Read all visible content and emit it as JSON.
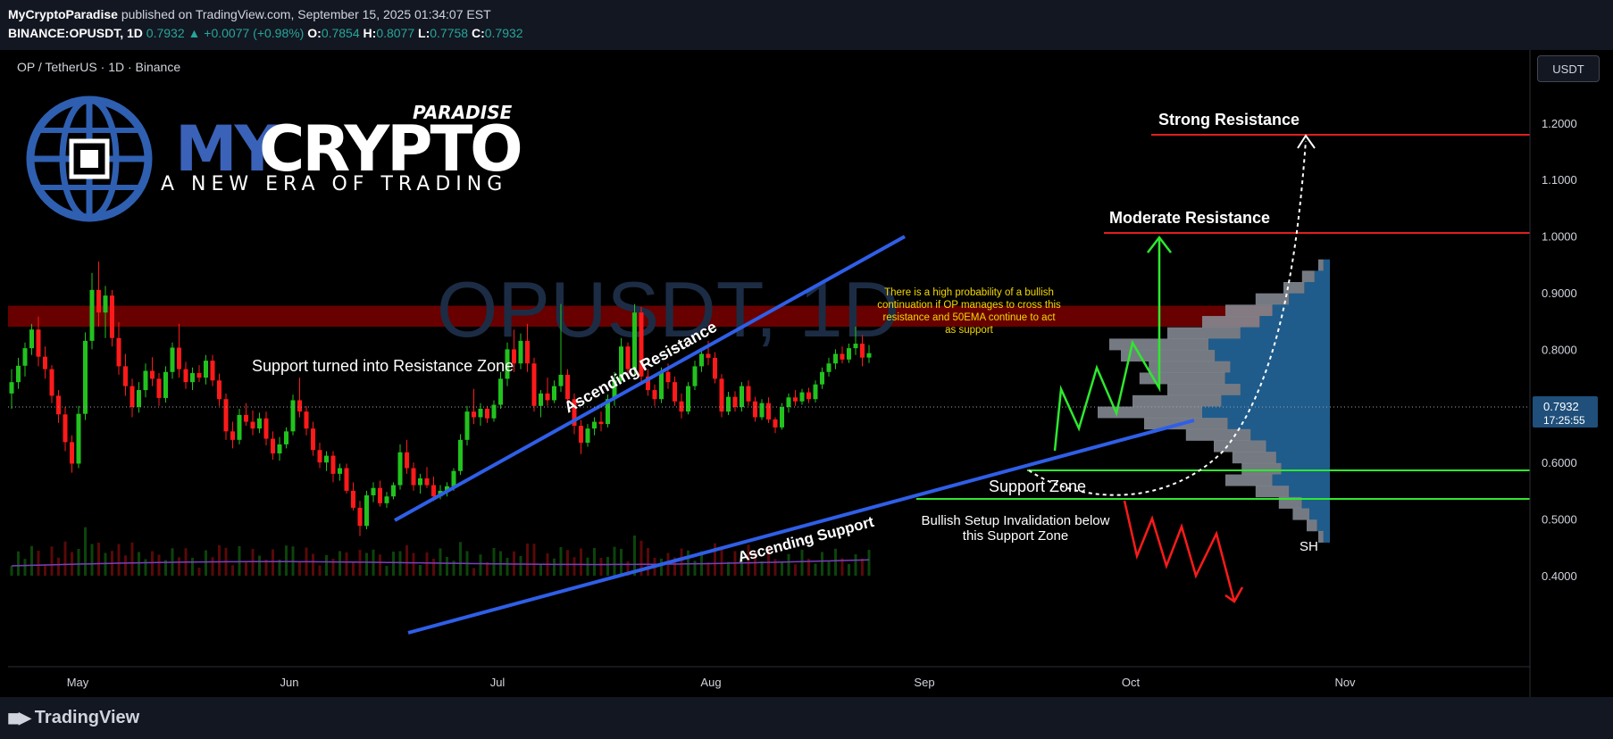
{
  "header": {
    "author": "MyCryptoParadise",
    "published_text": "published on TradingView.com, September 15, 2025 01:34:07 EST",
    "symbol": "BINANCE:OPUSDT, 1D",
    "last": "0.7932",
    "change": "+0.0077 (+0.98%)",
    "o_label": "O:",
    "o_value": "0.7854",
    "h_label": "H:",
    "h_value": "0.8077",
    "l_label": "L:",
    "l_value": "0.7758",
    "c_label": "C:",
    "c_value": "0.7932"
  },
  "symbol_title": "OP / TetherUS · 1D · Binance",
  "currency_button": "USDT",
  "watermark": "OPUSDT, 1D",
  "brand": {
    "paradise": "PARADISE",
    "my": "MY",
    "crypto": "CRYPTO",
    "tagline": "A NEW ERA OF TRADING"
  },
  "footer": {
    "logo_text": "TradingView"
  },
  "colors": {
    "up": "#22c21e",
    "down": "#ff1a1a",
    "trendline": "#2f5fe8",
    "resistance": "#e01e1e",
    "support": "#2ee82e",
    "zone": "#8b0000",
    "profile_blue": "#1f5c8c",
    "profile_grey": "#8a8f99",
    "price_badge": "#1f4f7a"
  },
  "chart_data": {
    "type": "candlestick",
    "title": "OP / TetherUS · 1D · Binance",
    "symbol": "BINANCE:OPUSDT",
    "interval": "1D",
    "y_axis": {
      "ticks": [
        "1.2000",
        "1.1000",
        "1.0000",
        "0.9000",
        "0.8000",
        "0.7000",
        "0.6000",
        "0.5000",
        "0.4000"
      ],
      "range": [
        0.4,
        1.3
      ]
    },
    "x_axis": {
      "ticks": [
        "May",
        "Jun",
        "Jul",
        "Aug",
        "Sep",
        "Oct",
        "Nov"
      ]
    },
    "current_price": {
      "value": 0.7932,
      "label": "0.7932",
      "countdown": "17:25:55"
    },
    "levels": [
      {
        "name": "Strong Resistance",
        "price": 1.208
      },
      {
        "name": "Moderate Resistance",
        "price": 1.058
      },
      {
        "name": "Support Zone",
        "price": 0.696
      },
      {
        "name": "Support Zone lower",
        "price": 0.651
      }
    ],
    "zones": [
      {
        "label": "Support turned into Resistance Zone",
        "from": 0.84,
        "to": 0.877
      }
    ],
    "annotations": {
      "ascending_resistance": "Ascending Resistance",
      "ascending_support": "Ascending Support",
      "support_zone": "Support Zone",
      "invalidation": [
        "Bullish Setup Invalidation below",
        "this Support Zone"
      ],
      "note": [
        "There is a high probability of a bullish",
        "continuation if OP manages to cross this",
        "resistance and 50EMA continue to act",
        "as support"
      ],
      "sh": "SH"
    },
    "trendlines": [
      {
        "name": "Ascending Resistance",
        "from": [
          0.0,
          0.618
        ],
        "to": [
          1.0,
          1.053
        ]
      },
      {
        "name": "Ascending Support",
        "from": [
          0.0,
          0.448
        ],
        "to": [
          1.0,
          0.766
        ]
      }
    ],
    "candles": [
      {
        "o": 0.722,
        "h": 0.765,
        "l": 0.695,
        "c": 0.742
      },
      {
        "o": 0.742,
        "h": 0.785,
        "l": 0.73,
        "c": 0.771
      },
      {
        "o": 0.771,
        "h": 0.812,
        "l": 0.752,
        "c": 0.802
      },
      {
        "o": 0.802,
        "h": 0.845,
        "l": 0.79,
        "c": 0.835
      },
      {
        "o": 0.835,
        "h": 0.858,
        "l": 0.77,
        "c": 0.787
      },
      {
        "o": 0.787,
        "h": 0.805,
        "l": 0.748,
        "c": 0.765
      },
      {
        "o": 0.765,
        "h": 0.772,
        "l": 0.705,
        "c": 0.718
      },
      {
        "o": 0.718,
        "h": 0.728,
        "l": 0.67,
        "c": 0.685
      },
      {
        "o": 0.685,
        "h": 0.698,
        "l": 0.62,
        "c": 0.636
      },
      {
        "o": 0.636,
        "h": 0.648,
        "l": 0.582,
        "c": 0.598
      },
      {
        "o": 0.598,
        "h": 0.7,
        "l": 0.59,
        "c": 0.686
      },
      {
        "o": 0.686,
        "h": 0.83,
        "l": 0.675,
        "c": 0.815
      },
      {
        "o": 0.815,
        "h": 0.935,
        "l": 0.8,
        "c": 0.905
      },
      {
        "o": 0.905,
        "h": 0.955,
        "l": 0.84,
        "c": 0.865
      },
      {
        "o": 0.865,
        "h": 0.912,
        "l": 0.82,
        "c": 0.895
      },
      {
        "o": 0.895,
        "h": 0.905,
        "l": 0.805,
        "c": 0.82
      },
      {
        "o": 0.82,
        "h": 0.848,
        "l": 0.755,
        "c": 0.77
      },
      {
        "o": 0.77,
        "h": 0.792,
        "l": 0.718,
        "c": 0.735
      },
      {
        "o": 0.735,
        "h": 0.748,
        "l": 0.68,
        "c": 0.698
      },
      {
        "o": 0.698,
        "h": 0.742,
        "l": 0.688,
        "c": 0.728
      },
      {
        "o": 0.728,
        "h": 0.775,
        "l": 0.715,
        "c": 0.762
      },
      {
        "o": 0.762,
        "h": 0.786,
        "l": 0.735,
        "c": 0.748
      },
      {
        "o": 0.748,
        "h": 0.758,
        "l": 0.7,
        "c": 0.714
      },
      {
        "o": 0.714,
        "h": 0.77,
        "l": 0.706,
        "c": 0.76
      },
      {
        "o": 0.76,
        "h": 0.812,
        "l": 0.748,
        "c": 0.803
      },
      {
        "o": 0.803,
        "h": 0.845,
        "l": 0.75,
        "c": 0.765
      },
      {
        "o": 0.765,
        "h": 0.778,
        "l": 0.73,
        "c": 0.742
      },
      {
        "o": 0.742,
        "h": 0.768,
        "l": 0.728,
        "c": 0.758
      },
      {
        "o": 0.758,
        "h": 0.772,
        "l": 0.742,
        "c": 0.75
      },
      {
        "o": 0.75,
        "h": 0.79,
        "l": 0.738,
        "c": 0.78
      },
      {
        "o": 0.78,
        "h": 0.79,
        "l": 0.735,
        "c": 0.745
      },
      {
        "o": 0.745,
        "h": 0.757,
        "l": 0.7,
        "c": 0.712
      },
      {
        "o": 0.712,
        "h": 0.722,
        "l": 0.64,
        "c": 0.655
      },
      {
        "o": 0.655,
        "h": 0.672,
        "l": 0.625,
        "c": 0.64
      },
      {
        "o": 0.64,
        "h": 0.695,
        "l": 0.632,
        "c": 0.684
      },
      {
        "o": 0.684,
        "h": 0.705,
        "l": 0.665,
        "c": 0.672
      },
      {
        "o": 0.672,
        "h": 0.692,
        "l": 0.648,
        "c": 0.66
      },
      {
        "o": 0.66,
        "h": 0.688,
        "l": 0.652,
        "c": 0.678
      },
      {
        "o": 0.678,
        "h": 0.69,
        "l": 0.63,
        "c": 0.642
      },
      {
        "o": 0.642,
        "h": 0.655,
        "l": 0.605,
        "c": 0.616
      },
      {
        "o": 0.616,
        "h": 0.645,
        "l": 0.603,
        "c": 0.632
      },
      {
        "o": 0.632,
        "h": 0.662,
        "l": 0.625,
        "c": 0.655
      },
      {
        "o": 0.655,
        "h": 0.72,
        "l": 0.648,
        "c": 0.71
      },
      {
        "o": 0.71,
        "h": 0.75,
        "l": 0.68,
        "c": 0.69
      },
      {
        "o": 0.69,
        "h": 0.7,
        "l": 0.648,
        "c": 0.66
      },
      {
        "o": 0.66,
        "h": 0.672,
        "l": 0.612,
        "c": 0.622
      },
      {
        "o": 0.622,
        "h": 0.635,
        "l": 0.59,
        "c": 0.6
      },
      {
        "o": 0.6,
        "h": 0.62,
        "l": 0.585,
        "c": 0.612
      },
      {
        "o": 0.612,
        "h": 0.62,
        "l": 0.565,
        "c": 0.58
      },
      {
        "o": 0.58,
        "h": 0.598,
        "l": 0.568,
        "c": 0.59
      },
      {
        "o": 0.59,
        "h": 0.598,
        "l": 0.545,
        "c": 0.55
      },
      {
        "o": 0.55,
        "h": 0.565,
        "l": 0.515,
        "c": 0.52
      },
      {
        "o": 0.52,
        "h": 0.532,
        "l": 0.47,
        "c": 0.488
      },
      {
        "o": 0.488,
        "h": 0.55,
        "l": 0.482,
        "c": 0.542
      },
      {
        "o": 0.542,
        "h": 0.565,
        "l": 0.53,
        "c": 0.555
      },
      {
        "o": 0.555,
        "h": 0.568,
        "l": 0.522,
        "c": 0.528
      },
      {
        "o": 0.528,
        "h": 0.548,
        "l": 0.52,
        "c": 0.54
      },
      {
        "o": 0.54,
        "h": 0.565,
        "l": 0.535,
        "c": 0.56
      },
      {
        "o": 0.56,
        "h": 0.632,
        "l": 0.552,
        "c": 0.618
      },
      {
        "o": 0.618,
        "h": 0.64,
        "l": 0.58,
        "c": 0.59
      },
      {
        "o": 0.59,
        "h": 0.6,
        "l": 0.55,
        "c": 0.56
      },
      {
        "o": 0.56,
        "h": 0.58,
        "l": 0.545,
        "c": 0.572
      },
      {
        "o": 0.572,
        "h": 0.592,
        "l": 0.555,
        "c": 0.56
      },
      {
        "o": 0.56,
        "h": 0.575,
        "l": 0.532,
        "c": 0.54
      },
      {
        "o": 0.54,
        "h": 0.56,
        "l": 0.535,
        "c": 0.55
      },
      {
        "o": 0.55,
        "h": 0.565,
        "l": 0.54,
        "c": 0.558
      },
      {
        "o": 0.558,
        "h": 0.59,
        "l": 0.55,
        "c": 0.585
      },
      {
        "o": 0.585,
        "h": 0.65,
        "l": 0.578,
        "c": 0.64
      },
      {
        "o": 0.64,
        "h": 0.7,
        "l": 0.63,
        "c": 0.69
      },
      {
        "o": 0.69,
        "h": 0.73,
        "l": 0.668,
        "c": 0.68
      },
      {
        "o": 0.68,
        "h": 0.705,
        "l": 0.665,
        "c": 0.695
      },
      {
        "o": 0.695,
        "h": 0.7,
        "l": 0.67,
        "c": 0.678
      },
      {
        "o": 0.678,
        "h": 0.71,
        "l": 0.672,
        "c": 0.702
      },
      {
        "o": 0.702,
        "h": 0.76,
        "l": 0.695,
        "c": 0.748
      },
      {
        "o": 0.748,
        "h": 0.812,
        "l": 0.735,
        "c": 0.8
      },
      {
        "o": 0.8,
        "h": 0.835,
        "l": 0.76,
        "c": 0.775
      },
      {
        "o": 0.775,
        "h": 0.828,
        "l": 0.765,
        "c": 0.815
      },
      {
        "o": 0.815,
        "h": 0.845,
        "l": 0.76,
        "c": 0.775
      },
      {
        "o": 0.775,
        "h": 0.785,
        "l": 0.69,
        "c": 0.7
      },
      {
        "o": 0.7,
        "h": 0.728,
        "l": 0.68,
        "c": 0.722
      },
      {
        "o": 0.722,
        "h": 0.75,
        "l": 0.7,
        "c": 0.71
      },
      {
        "o": 0.71,
        "h": 0.745,
        "l": 0.705,
        "c": 0.735
      },
      {
        "o": 0.735,
        "h": 0.88,
        "l": 0.725,
        "c": 0.755
      },
      {
        "o": 0.755,
        "h": 0.765,
        "l": 0.7,
        "c": 0.712
      },
      {
        "o": 0.712,
        "h": 0.722,
        "l": 0.65,
        "c": 0.665
      },
      {
        "o": 0.665,
        "h": 0.675,
        "l": 0.615,
        "c": 0.635
      },
      {
        "o": 0.635,
        "h": 0.668,
        "l": 0.628,
        "c": 0.66
      },
      {
        "o": 0.66,
        "h": 0.68,
        "l": 0.648,
        "c": 0.672
      },
      {
        "o": 0.672,
        "h": 0.69,
        "l": 0.655,
        "c": 0.668
      },
      {
        "o": 0.668,
        "h": 0.72,
        "l": 0.662,
        "c": 0.712
      },
      {
        "o": 0.712,
        "h": 0.76,
        "l": 0.7,
        "c": 0.745
      },
      {
        "o": 0.745,
        "h": 0.82,
        "l": 0.74,
        "c": 0.805
      },
      {
        "o": 0.805,
        "h": 0.812,
        "l": 0.752,
        "c": 0.765
      },
      {
        "o": 0.765,
        "h": 0.88,
        "l": 0.755,
        "c": 0.865
      },
      {
        "o": 0.865,
        "h": 0.875,
        "l": 0.74,
        "c": 0.752
      },
      {
        "o": 0.752,
        "h": 0.765,
        "l": 0.718,
        "c": 0.728
      },
      {
        "o": 0.728,
        "h": 0.738,
        "l": 0.7,
        "c": 0.712
      },
      {
        "o": 0.712,
        "h": 0.768,
        "l": 0.705,
        "c": 0.76
      },
      {
        "o": 0.76,
        "h": 0.775,
        "l": 0.73,
        "c": 0.742
      },
      {
        "o": 0.742,
        "h": 0.752,
        "l": 0.7,
        "c": 0.708
      },
      {
        "o": 0.708,
        "h": 0.722,
        "l": 0.678,
        "c": 0.69
      },
      {
        "o": 0.69,
        "h": 0.742,
        "l": 0.685,
        "c": 0.735
      },
      {
        "o": 0.735,
        "h": 0.78,
        "l": 0.728,
        "c": 0.77
      },
      {
        "o": 0.77,
        "h": 0.8,
        "l": 0.76,
        "c": 0.792
      },
      {
        "o": 0.792,
        "h": 0.815,
        "l": 0.772,
        "c": 0.785
      },
      {
        "o": 0.785,
        "h": 0.795,
        "l": 0.74,
        "c": 0.748
      },
      {
        "o": 0.748,
        "h": 0.756,
        "l": 0.68,
        "c": 0.69
      },
      {
        "o": 0.69,
        "h": 0.725,
        "l": 0.684,
        "c": 0.716
      },
      {
        "o": 0.716,
        "h": 0.726,
        "l": 0.69,
        "c": 0.698
      },
      {
        "o": 0.698,
        "h": 0.742,
        "l": 0.69,
        "c": 0.735
      },
      {
        "o": 0.735,
        "h": 0.745,
        "l": 0.7,
        "c": 0.708
      },
      {
        "o": 0.708,
        "h": 0.716,
        "l": 0.672,
        "c": 0.68
      },
      {
        "o": 0.68,
        "h": 0.712,
        "l": 0.675,
        "c": 0.705
      },
      {
        "o": 0.705,
        "h": 0.715,
        "l": 0.67,
        "c": 0.676
      },
      {
        "o": 0.676,
        "h": 0.68,
        "l": 0.652,
        "c": 0.662
      },
      {
        "o": 0.662,
        "h": 0.705,
        "l": 0.658,
        "c": 0.698
      },
      {
        "o": 0.698,
        "h": 0.722,
        "l": 0.688,
        "c": 0.715
      },
      {
        "o": 0.715,
        "h": 0.728,
        "l": 0.7,
        "c": 0.708
      },
      {
        "o": 0.708,
        "h": 0.73,
        "l": 0.702,
        "c": 0.724
      },
      {
        "o": 0.724,
        "h": 0.732,
        "l": 0.705,
        "c": 0.712
      },
      {
        "o": 0.712,
        "h": 0.745,
        "l": 0.706,
        "c": 0.738
      },
      {
        "o": 0.738,
        "h": 0.768,
        "l": 0.73,
        "c": 0.76
      },
      {
        "o": 0.76,
        "h": 0.785,
        "l": 0.752,
        "c": 0.775
      },
      {
        "o": 0.775,
        "h": 0.8,
        "l": 0.765,
        "c": 0.792
      },
      {
        "o": 0.792,
        "h": 0.805,
        "l": 0.775,
        "c": 0.782
      },
      {
        "o": 0.782,
        "h": 0.81,
        "l": 0.776,
        "c": 0.802
      },
      {
        "o": 0.802,
        "h": 0.84,
        "l": 0.79,
        "c": 0.81
      },
      {
        "o": 0.81,
        "h": 0.825,
        "l": 0.77,
        "c": 0.7854
      },
      {
        "o": 0.7854,
        "h": 0.8077,
        "l": 0.7758,
        "c": 0.7932
      }
    ],
    "volume_profile": [
      {
        "p": 0.94,
        "v": 0.05
      },
      {
        "p": 0.92,
        "v": 0.12
      },
      {
        "p": 0.9,
        "v": 0.2
      },
      {
        "p": 0.88,
        "v": 0.32
      },
      {
        "p": 0.86,
        "v": 0.45
      },
      {
        "p": 0.84,
        "v": 0.55
      },
      {
        "p": 0.82,
        "v": 0.7
      },
      {
        "p": 0.8,
        "v": 0.95
      },
      {
        "p": 0.78,
        "v": 0.9
      },
      {
        "p": 0.76,
        "v": 0.78
      },
      {
        "p": 0.74,
        "v": 0.82
      },
      {
        "p": 0.72,
        "v": 0.7
      },
      {
        "p": 0.7,
        "v": 0.85
      },
      {
        "p": 0.68,
        "v": 1.0
      },
      {
        "p": 0.66,
        "v": 0.8
      },
      {
        "p": 0.64,
        "v": 0.62
      },
      {
        "p": 0.62,
        "v": 0.5
      },
      {
        "p": 0.6,
        "v": 0.42
      },
      {
        "p": 0.58,
        "v": 0.38
      },
      {
        "p": 0.56,
        "v": 0.45
      },
      {
        "p": 0.54,
        "v": 0.32
      },
      {
        "p": 0.52,
        "v": 0.22
      },
      {
        "p": 0.5,
        "v": 0.16
      },
      {
        "p": 0.48,
        "v": 0.1
      },
      {
        "p": 0.46,
        "v": 0.05
      }
    ]
  }
}
